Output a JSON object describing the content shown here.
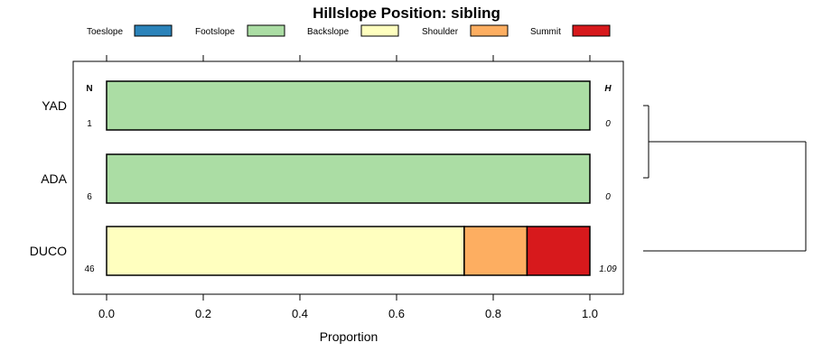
{
  "chart_data": {
    "type": "bar",
    "orientation": "horizontal",
    "stacked": true,
    "title": "Hillslope Position: sibling",
    "xlabel": "Proportion",
    "ylabel": "",
    "xlim": [
      0,
      1
    ],
    "x_ticks": [
      "0.0",
      "0.2",
      "0.4",
      "0.6",
      "0.8",
      "1.0"
    ],
    "categories": [
      "YAD",
      "ADA",
      "DUCO"
    ],
    "n_header": "N",
    "h_header": "H",
    "n_values": [
      "1",
      "6",
      "46"
    ],
    "h_values": [
      "0",
      "0",
      "1.09"
    ],
    "legend_position": "top",
    "series": [
      {
        "name": "Toeslope",
        "color": "#2B83BA",
        "values": [
          0,
          0,
          0
        ]
      },
      {
        "name": "Footslope",
        "color": "#ABDDA4",
        "values": [
          1,
          1,
          0
        ]
      },
      {
        "name": "Backslope",
        "color": "#FFFFBF",
        "values": [
          0,
          0,
          0.74
        ]
      },
      {
        "name": "Shoulder",
        "color": "#FDAE61",
        "values": [
          0,
          0,
          0.13
        ]
      },
      {
        "name": "Summit",
        "color": "#D7191C",
        "values": [
          0,
          0,
          0.13
        ]
      }
    ],
    "dendrogram": true,
    "grid": false
  }
}
